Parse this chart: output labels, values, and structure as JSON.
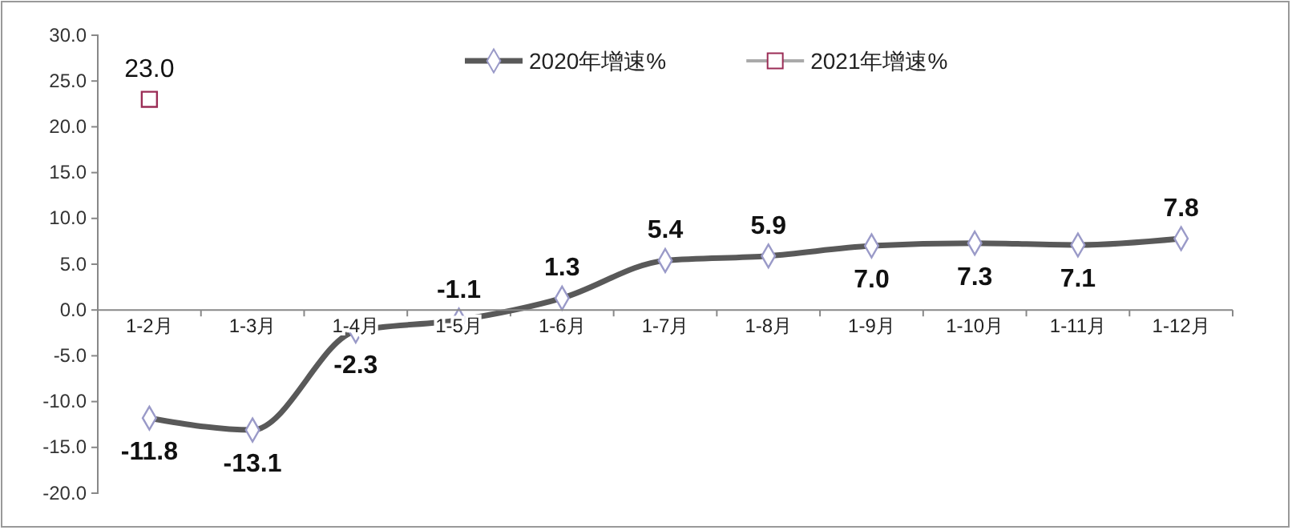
{
  "chart_data": {
    "type": "line",
    "categories": [
      "1-2月",
      "1-3月",
      "1-4月",
      "1-5月",
      "1-6月",
      "1-7月",
      "1-8月",
      "1-9月",
      "1-10月",
      "1-11月",
      "1-12月"
    ],
    "series": [
      {
        "name": "2020年增速%",
        "color": "#595959",
        "marker": "diamond",
        "values": [
          -11.8,
          -13.1,
          -2.3,
          -1.1,
          1.3,
          5.4,
          5.9,
          7.0,
          7.3,
          7.1,
          7.8
        ],
        "value_labels": [
          "-11.8",
          "-13.1",
          "-2.3",
          "-1.1",
          "1.3",
          "5.4",
          "5.9",
          "7.0",
          "7.3",
          "7.1",
          "7.8"
        ]
      },
      {
        "name": "2021年增速%",
        "color": "#9b2d56",
        "marker": "square",
        "values": [
          23.0,
          null,
          null,
          null,
          null,
          null,
          null,
          null,
          null,
          null,
          null
        ],
        "value_labels": [
          "23.0",
          null,
          null,
          null,
          null,
          null,
          null,
          null,
          null,
          null,
          null
        ]
      }
    ],
    "ylim": [
      -20,
      30
    ],
    "yticks": [
      {
        "value": 30,
        "label": "30.0"
      },
      {
        "value": 25,
        "label": "25.0"
      },
      {
        "value": 20,
        "label": "20.0"
      },
      {
        "value": 15,
        "label": "15.0"
      },
      {
        "value": 10,
        "label": "10.0"
      },
      {
        "value": 5,
        "label": "5.0"
      },
      {
        "value": 0,
        "label": "0.0"
      },
      {
        "value": -5,
        "label": "-5.0"
      },
      {
        "value": -10,
        "label": "-10.0"
      },
      {
        "value": -15,
        "label": "-15.0"
      },
      {
        "value": -20,
        "label": "-20.0"
      }
    ],
    "legend": "top",
    "grid": false
  }
}
